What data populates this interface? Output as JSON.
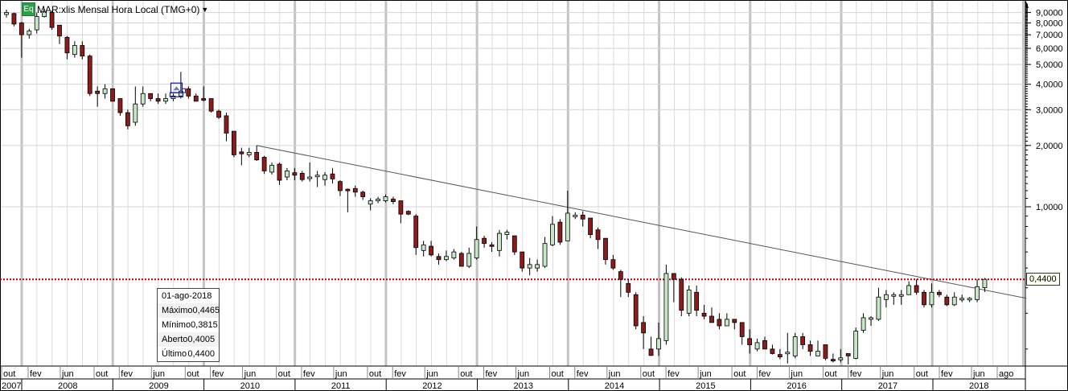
{
  "header": {
    "badge": "Eq",
    "title": "MAR:xlis Mensal Hora Local (TMG+0)",
    "dropdown_icon": "caret-down-icon"
  },
  "legend": {
    "date": "01-ago-2018",
    "rows": [
      {
        "label": "Máximo",
        "value": "0,4465"
      },
      {
        "label": "Mínimo",
        "value": "0,3815"
      },
      {
        "label": "Aberto",
        "value": "0,4005"
      },
      {
        "label": "Último",
        "value": "0,4400"
      }
    ]
  },
  "last_price_label": "0,4400",
  "colors": {
    "up": "#c6e6c6",
    "down": "#8e1b1b",
    "last_line": "#c00000",
    "marker": "#1a1aa0"
  },
  "chart_data": {
    "type": "candlestick",
    "title": "MAR:xlis Mensal Hora Local (TMG+0)",
    "scale": "log",
    "ylim": [
      0.15,
      10
    ],
    "y_ticks": [
      "9,0000",
      "8,0000",
      "7,0000",
      "6,0000",
      "5,0000",
      "4,0000",
      "3,0000",
      "2,0000",
      "1,0000"
    ],
    "y_tick_values": [
      9,
      8,
      7,
      6,
      5,
      4,
      3,
      2,
      1
    ],
    "first_period": "out 2007",
    "last_period": "ago 2018",
    "month_labels": [
      "out",
      "fev",
      "jun",
      "out",
      "fev",
      "jun",
      "out",
      "fev",
      "jun",
      "out",
      "fev",
      "jun",
      "out",
      "fev",
      "jun",
      "out",
      "fev",
      "jun",
      "out",
      "fev",
      "jun",
      "out",
      "fev",
      "jun",
      "out",
      "fev",
      "jun",
      "out",
      "fev",
      "jun",
      "out",
      "fev",
      "jun",
      "ago"
    ],
    "year_labels": [
      "2007",
      "2008",
      "2009",
      "2010",
      "2011",
      "2012",
      "2013",
      "2014",
      "2015",
      "2016",
      "2017",
      "2018"
    ],
    "last_value": 0.44,
    "trendline": {
      "from": {
        "index": 33,
        "value": 2.0
      },
      "to": {
        "index": 134.5,
        "value": 0.355
      }
    },
    "event_marker_index": 22,
    "ohlc": [
      [
        8.8,
        9.3,
        8.5,
        9.0
      ],
      [
        8.9,
        9.0,
        7.7,
        7.9
      ],
      [
        8.0,
        8.1,
        5.4,
        7.0
      ],
      [
        7.0,
        7.5,
        6.7,
        7.3
      ],
      [
        7.4,
        9.0,
        7.1,
        8.6
      ],
      [
        8.6,
        9.4,
        8.5,
        9.1
      ],
      [
        9.0,
        9.2,
        7.4,
        7.6
      ],
      [
        7.8,
        7.8,
        6.3,
        6.9
      ],
      [
        6.8,
        6.9,
        5.3,
        5.7
      ],
      [
        5.6,
        6.5,
        5.4,
        6.2
      ],
      [
        6.2,
        6.5,
        5.3,
        5.5
      ],
      [
        5.5,
        5.6,
        3.5,
        3.6
      ],
      [
        3.7,
        3.9,
        3.1,
        3.6
      ],
      [
        3.6,
        4.0,
        3.4,
        3.8
      ],
      [
        3.8,
        3.8,
        3.3,
        3.3
      ],
      [
        3.4,
        3.4,
        2.8,
        2.9
      ],
      [
        2.9,
        3.0,
        2.4,
        2.5
      ],
      [
        2.6,
        3.9,
        2.5,
        3.2
      ],
      [
        3.2,
        3.9,
        3.1,
        3.6
      ],
      [
        3.6,
        3.6,
        3.3,
        3.4
      ],
      [
        3.4,
        3.6,
        3.2,
        3.3
      ],
      [
        3.3,
        3.6,
        3.2,
        3.4
      ],
      [
        3.4,
        3.6,
        3.3,
        3.5
      ],
      [
        3.5,
        4.6,
        3.4,
        3.7
      ],
      [
        3.8,
        3.9,
        3.4,
        3.5
      ],
      [
        3.5,
        3.6,
        3.3,
        3.3
      ],
      [
        3.4,
        3.9,
        3.3,
        3.35
      ],
      [
        3.4,
        3.4,
        2.9,
        2.95
      ],
      [
        2.95,
        3.0,
        2.7,
        2.75
      ],
      [
        2.8,
        2.9,
        2.1,
        2.3
      ],
      [
        2.35,
        2.35,
        1.75,
        1.8
      ],
      [
        1.86,
        1.95,
        1.6,
        1.82
      ],
      [
        1.8,
        1.95,
        1.75,
        1.85
      ],
      [
        1.85,
        2.0,
        1.68,
        1.7
      ],
      [
        1.75,
        1.78,
        1.45,
        1.5
      ],
      [
        1.48,
        1.65,
        1.44,
        1.6
      ],
      [
        1.62,
        1.65,
        1.28,
        1.35
      ],
      [
        1.4,
        1.55,
        1.35,
        1.5
      ],
      [
        1.47,
        1.55,
        1.35,
        1.43
      ],
      [
        1.46,
        1.5,
        1.33,
        1.36
      ],
      [
        1.38,
        1.65,
        1.33,
        1.4
      ],
      [
        1.42,
        1.5,
        1.25,
        1.43
      ],
      [
        1.36,
        1.48,
        1.27,
        1.43
      ],
      [
        1.45,
        1.55,
        1.3,
        1.37
      ],
      [
        1.33,
        1.35,
        1.13,
        1.2
      ],
      [
        1.22,
        1.23,
        0.94,
        1.21
      ],
      [
        1.23,
        1.27,
        1.12,
        1.18
      ],
      [
        1.18,
        1.2,
        1.08,
        1.12
      ],
      [
        1.03,
        1.1,
        0.96,
        1.07
      ],
      [
        1.07,
        1.12,
        1.04,
        1.09
      ],
      [
        1.07,
        1.15,
        1.05,
        1.12
      ],
      [
        1.09,
        1.12,
        1.03,
        1.06
      ],
      [
        1.07,
        1.07,
        0.83,
        0.92
      ],
      [
        0.95,
        0.96,
        0.91,
        0.92
      ],
      [
        0.9,
        0.92,
        0.58,
        0.63
      ],
      [
        0.61,
        0.68,
        0.57,
        0.65
      ],
      [
        0.64,
        0.68,
        0.57,
        0.58
      ],
      [
        0.57,
        0.59,
        0.52,
        0.55
      ],
      [
        0.55,
        0.61,
        0.54,
        0.57
      ],
      [
        0.56,
        0.62,
        0.55,
        0.6
      ],
      [
        0.59,
        0.6,
        0.51,
        0.51
      ],
      [
        0.51,
        0.63,
        0.5,
        0.59
      ],
      [
        0.56,
        0.8,
        0.55,
        0.69
      ],
      [
        0.7,
        0.72,
        0.63,
        0.66
      ],
      [
        0.65,
        0.67,
        0.6,
        0.64
      ],
      [
        0.61,
        0.77,
        0.57,
        0.74
      ],
      [
        0.73,
        0.77,
        0.69,
        0.75
      ],
      [
        0.72,
        0.72,
        0.58,
        0.6
      ],
      [
        0.6,
        0.6,
        0.48,
        0.5
      ],
      [
        0.5,
        0.56,
        0.46,
        0.52
      ],
      [
        0.5,
        0.55,
        0.48,
        0.52
      ],
      [
        0.51,
        0.71,
        0.5,
        0.66
      ],
      [
        0.65,
        0.9,
        0.64,
        0.82
      ],
      [
        0.84,
        0.87,
        0.65,
        0.67
      ],
      [
        0.68,
        1.2,
        0.68,
        0.93
      ],
      [
        0.9,
        0.94,
        0.87,
        0.91
      ],
      [
        0.91,
        0.95,
        0.8,
        0.87
      ],
      [
        0.88,
        0.88,
        0.7,
        0.73
      ],
      [
        0.77,
        0.79,
        0.62,
        0.69
      ],
      [
        0.7,
        0.7,
        0.52,
        0.55
      ],
      [
        0.55,
        0.58,
        0.49,
        0.5
      ],
      [
        0.48,
        0.49,
        0.36,
        0.44
      ],
      [
        0.42,
        0.44,
        0.36,
        0.38
      ],
      [
        0.37,
        0.38,
        0.25,
        0.26
      ],
      [
        0.27,
        0.29,
        0.2,
        0.24
      ],
      [
        0.2,
        0.23,
        0.185,
        0.186
      ],
      [
        0.2,
        0.27,
        0.185,
        0.225
      ],
      [
        0.22,
        0.52,
        0.21,
        0.47
      ],
      [
        0.47,
        0.47,
        0.34,
        0.44
      ],
      [
        0.44,
        0.45,
        0.29,
        0.31
      ],
      [
        0.3,
        0.41,
        0.29,
        0.39
      ],
      [
        0.38,
        0.41,
        0.29,
        0.31
      ],
      [
        0.3,
        0.33,
        0.28,
        0.29
      ],
      [
        0.29,
        0.32,
        0.27,
        0.27
      ],
      [
        0.28,
        0.3,
        0.25,
        0.26
      ],
      [
        0.26,
        0.3,
        0.26,
        0.28
      ],
      [
        0.28,
        0.28,
        0.25,
        0.27
      ],
      [
        0.27,
        0.27,
        0.21,
        0.23
      ],
      [
        0.225,
        0.25,
        0.19,
        0.21
      ],
      [
        0.2,
        0.225,
        0.195,
        0.215
      ],
      [
        0.22,
        0.23,
        0.2,
        0.2
      ],
      [
        0.2,
        0.21,
        0.188,
        0.19
      ],
      [
        0.188,
        0.2,
        0.178,
        0.183
      ],
      [
        0.19,
        0.24,
        0.17,
        0.193
      ],
      [
        0.185,
        0.24,
        0.18,
        0.23
      ],
      [
        0.23,
        0.24,
        0.2,
        0.21
      ],
      [
        0.21,
        0.22,
        0.185,
        0.195
      ],
      [
        0.185,
        0.22,
        0.185,
        0.195
      ],
      [
        0.21,
        0.21,
        0.176,
        0.18
      ],
      [
        0.178,
        0.19,
        0.172,
        0.176
      ],
      [
        0.177,
        0.2,
        0.172,
        0.181
      ],
      [
        0.19,
        0.19,
        0.168,
        0.185
      ],
      [
        0.18,
        0.255,
        0.178,
        0.245
      ],
      [
        0.247,
        0.3,
        0.24,
        0.285
      ],
      [
        0.28,
        0.29,
        0.26,
        0.285
      ],
      [
        0.28,
        0.4,
        0.275,
        0.36
      ],
      [
        0.35,
        0.39,
        0.32,
        0.37
      ],
      [
        0.365,
        0.38,
        0.33,
        0.37
      ],
      [
        0.365,
        0.39,
        0.33,
        0.37
      ],
      [
        0.37,
        0.43,
        0.37,
        0.41
      ],
      [
        0.41,
        0.44,
        0.37,
        0.38
      ],
      [
        0.38,
        0.39,
        0.32,
        0.33
      ],
      [
        0.33,
        0.42,
        0.32,
        0.38
      ],
      [
        0.38,
        0.39,
        0.36,
        0.37
      ],
      [
        0.36,
        0.37,
        0.325,
        0.33
      ],
      [
        0.33,
        0.38,
        0.325,
        0.36
      ],
      [
        0.35,
        0.37,
        0.34,
        0.355
      ],
      [
        0.35,
        0.36,
        0.34,
        0.355
      ],
      [
        0.35,
        0.44,
        0.34,
        0.405
      ],
      [
        0.4005,
        0.4465,
        0.3815,
        0.44
      ]
    ]
  }
}
